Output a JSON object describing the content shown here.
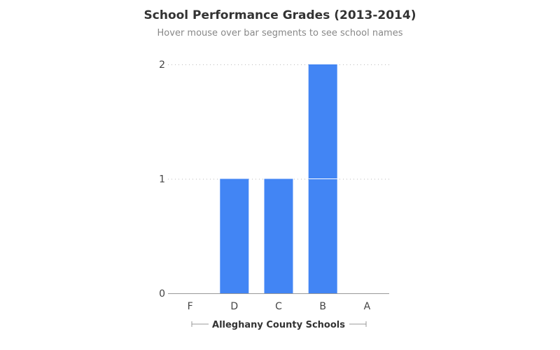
{
  "chart_data": {
    "type": "bar",
    "stacked": true,
    "title": "School Performance Grades (2013-2014)",
    "subtitle": "Hover mouse over bar segments to see school names",
    "xlabel": "Alleghany County Schools",
    "ylabel": "",
    "categories": [
      "F",
      "D",
      "C",
      "B",
      "A"
    ],
    "values": [
      0,
      1,
      1,
      2,
      0
    ],
    "segment_value": 1,
    "ylim": [
      0,
      2
    ],
    "yticks": [
      0,
      1,
      2
    ],
    "grid": true,
    "legend": "none",
    "bar_color": "#4285f4"
  }
}
